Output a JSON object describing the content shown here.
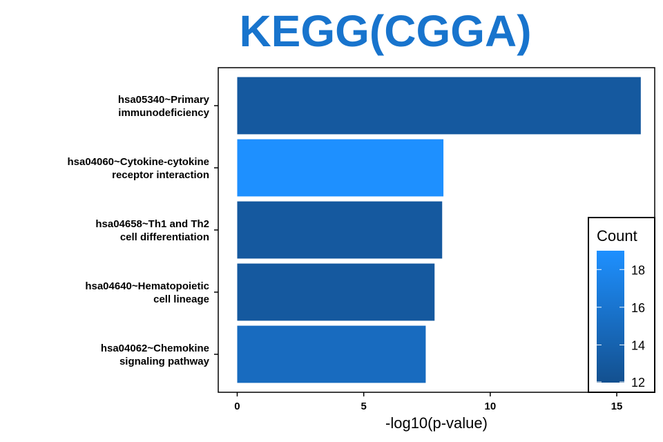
{
  "chart_data": {
    "type": "bar",
    "orientation": "horizontal",
    "title": "KEGG(CGGA)",
    "xlabel": "-log10(p-value)",
    "ylabel": "",
    "xlim": [
      -0.75,
      16.5
    ],
    "x_ticks": [
      0,
      5,
      10,
      15
    ],
    "categories": [
      [
        "hsa05340~Primary",
        "immunodeficiency"
      ],
      [
        "hsa04060~Cytokine-cytokine",
        "receptor interaction"
      ],
      [
        "hsa04658~Th1 and Th2",
        "cell differentiation"
      ],
      [
        "hsa04640~Hematopoietic",
        "cell lineage"
      ],
      [
        "hsa04062~Chemokine",
        "signaling pathway"
      ]
    ],
    "values": [
      15.95,
      8.15,
      8.1,
      7.8,
      7.45
    ],
    "counts": [
      13,
      19,
      13,
      13,
      15
    ],
    "grid": false,
    "legend": {
      "title": "Count",
      "position": "right",
      "range": [
        12,
        19
      ],
      "ticks": [
        12,
        14,
        16,
        18
      ],
      "color_low": "#13508F",
      "color_high": "#1E90FF"
    },
    "colors": {
      "title": "#1874CD",
      "axis": "#000000",
      "tick_text": "#000000"
    }
  }
}
